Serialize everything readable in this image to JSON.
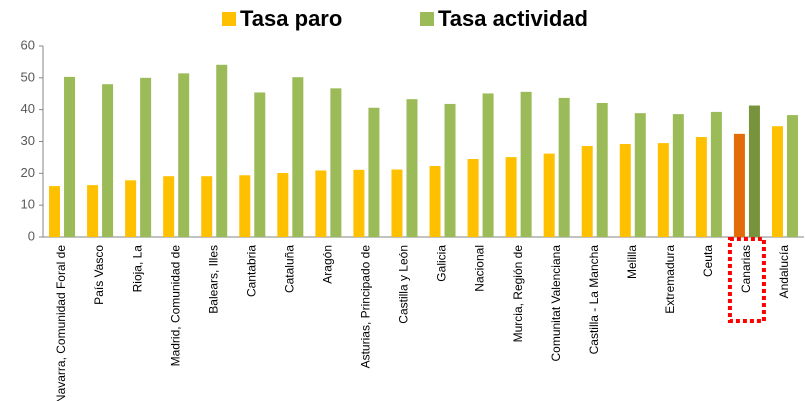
{
  "chart_data": {
    "type": "bar",
    "categories": [
      "Navarra, Comunidad Foral de",
      "País Vasco",
      "Rioja, La",
      "Madrid, Comunidad de",
      "Balears, Illes",
      "Cantabria",
      "Cataluña",
      "Aragón",
      "Asturias, Principado de",
      "Castilla y León",
      "Galicia",
      "Nacional",
      "Murcia, Región de",
      "Comunitat Valenciana",
      "Castilla - La Mancha",
      "Melilla",
      "Extremadura",
      "Ceuta",
      "Canarias",
      "Andalucía"
    ],
    "series": [
      {
        "name": "Tasa paro",
        "color": "#ffc000",
        "highlight_color": "#e36c09",
        "values": [
          16,
          16.3,
          17.8,
          19.1,
          19.1,
          19.4,
          20.1,
          20.9,
          21.1,
          21.2,
          22.3,
          24.5,
          25.1,
          26.2,
          28.6,
          29.2,
          29.5,
          31.4,
          32.4,
          34.8
        ]
      },
      {
        "name": "Tasa actividad",
        "color": "#9bbb59",
        "highlight_color": "#77933c",
        "values": [
          50.3,
          48,
          50,
          51.4,
          54.1,
          45.4,
          50.2,
          46.7,
          40.6,
          43.3,
          41.8,
          45.1,
          45.6,
          43.7,
          42.1,
          38.9,
          38.6,
          39.3,
          41.3,
          38.3
        ]
      }
    ],
    "highlight_category": 18,
    "ylim": [
      0,
      60
    ],
    "yticks": [
      0,
      10,
      20,
      30,
      40,
      50,
      60
    ],
    "grid": false,
    "legend": "top"
  }
}
